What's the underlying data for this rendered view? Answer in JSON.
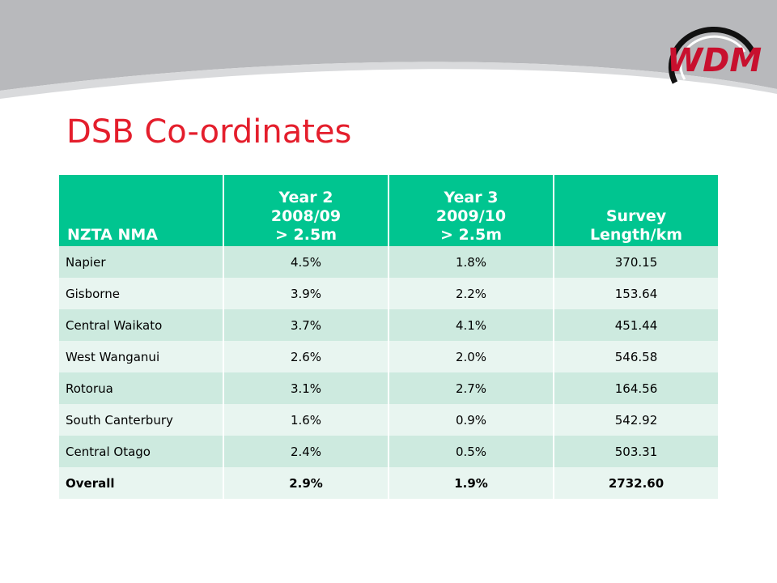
{
  "slide": {
    "title": "DSB Co-ordinates",
    "logo_text": "WDM",
    "colors": {
      "title": "#e41e2c",
      "header_bg": "#00c590",
      "row_odd": "#cdeadf",
      "row_even": "#e8f5f0",
      "banner": "#b8b9bc",
      "logo_red": "#c8102e"
    }
  },
  "table": {
    "headers": [
      {
        "lines": [
          "NZTA NMA"
        ]
      },
      {
        "lines": [
          "Year 2",
          "2008/09",
          "> 2.5m"
        ]
      },
      {
        "lines": [
          "Year 3",
          "2009/10",
          "> 2.5m"
        ]
      },
      {
        "lines": [
          "Survey",
          "Length/km"
        ]
      }
    ],
    "rows": [
      [
        "Napier",
        "4.5%",
        "1.8%",
        "370.15"
      ],
      [
        "Gisborne",
        "3.9%",
        "2.2%",
        "153.64"
      ],
      [
        "Central Waikato",
        "3.7%",
        "4.1%",
        "451.44"
      ],
      [
        "West Wanganui",
        "2.6%",
        "2.0%",
        "546.58"
      ],
      [
        "Rotorua",
        "3.1%",
        "2.7%",
        "164.56"
      ],
      [
        "South Canterbury",
        "1.6%",
        "0.9%",
        "542.92"
      ],
      [
        "Central Otago",
        "2.4%",
        "0.5%",
        "503.31"
      ],
      [
        "Overall",
        "2.9%",
        "1.9%",
        "2732.60"
      ]
    ]
  }
}
